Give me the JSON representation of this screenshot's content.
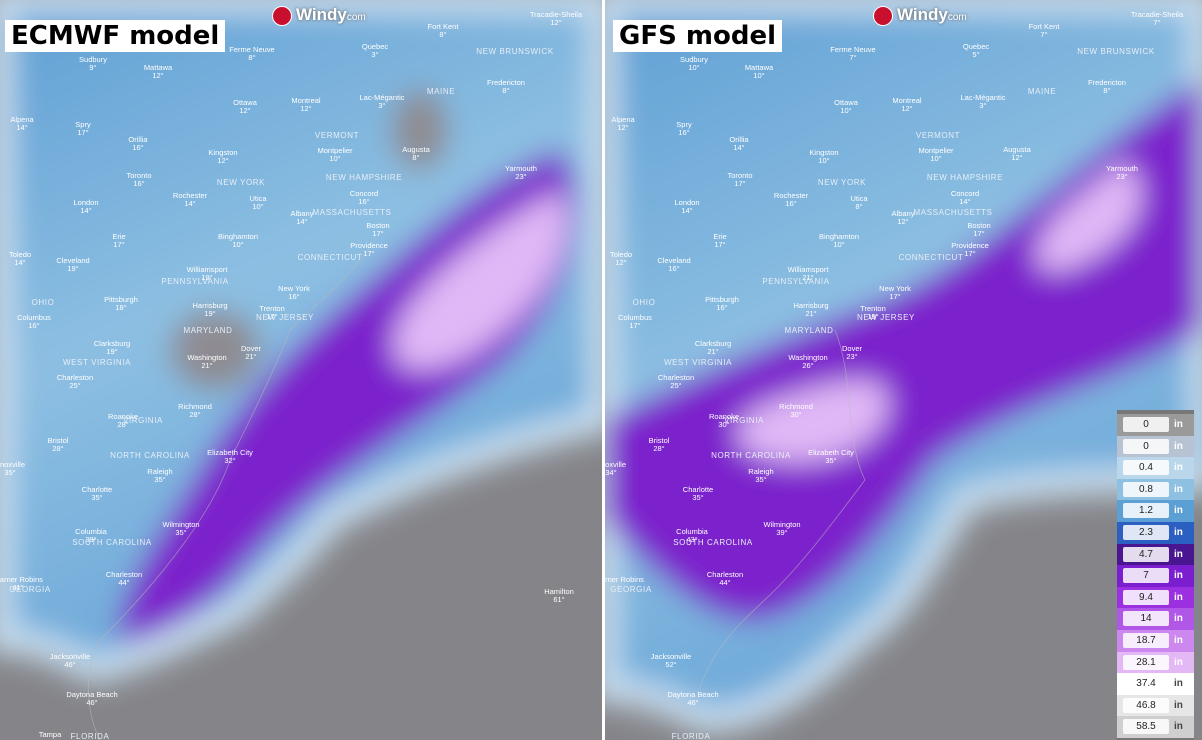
{
  "panels": [
    {
      "title": "ECMWF model",
      "logo": "Windy",
      "logo_suffix": "com",
      "cities": [
        {
          "name": "Tracadie-Sheila",
          "temp": "12°"
        },
        {
          "name": "Fort Kent",
          "temp": "8°"
        },
        {
          "name": "Quebec",
          "temp": "3°"
        },
        {
          "name": "Ferme Neuve",
          "temp": "8°"
        },
        {
          "name": "Sudbury",
          "temp": "9°"
        },
        {
          "name": "Mattawa",
          "temp": "12°"
        },
        {
          "name": "Fredericton",
          "temp": "8°"
        },
        {
          "name": "Ottawa",
          "temp": "12°"
        },
        {
          "name": "Montreal",
          "temp": "12°"
        },
        {
          "name": "Lac-Mégantic",
          "temp": "3°"
        },
        {
          "name": "Alpena",
          "temp": "14°"
        },
        {
          "name": "Spry",
          "temp": "17°"
        },
        {
          "name": "Orillia",
          "temp": "16°"
        },
        {
          "name": "Kingston",
          "temp": "12°"
        },
        {
          "name": "Montpelier",
          "temp": "10°"
        },
        {
          "name": "Augusta",
          "temp": "8°"
        },
        {
          "name": "Yarmouth",
          "temp": "23°"
        },
        {
          "name": "Toronto",
          "temp": "16°"
        },
        {
          "name": "Rochester",
          "temp": "14°"
        },
        {
          "name": "Utica",
          "temp": "10°"
        },
        {
          "name": "Concord",
          "temp": "16°"
        },
        {
          "name": "London",
          "temp": "14°"
        },
        {
          "name": "Albany",
          "temp": "14°"
        },
        {
          "name": "Boston",
          "temp": "17°"
        },
        {
          "name": "Erie",
          "temp": "17°"
        },
        {
          "name": "Binghamton",
          "temp": "10°"
        },
        {
          "name": "Providence",
          "temp": "17°"
        },
        {
          "name": "Toledo",
          "temp": "14°"
        },
        {
          "name": "Cleveland",
          "temp": "19°"
        },
        {
          "name": "Williamsport",
          "temp": "19°"
        },
        {
          "name": "New York",
          "temp": "16°"
        },
        {
          "name": "Pittsburgh",
          "temp": "18°"
        },
        {
          "name": "Harrisburg",
          "temp": "19°"
        },
        {
          "name": "Trenton",
          "temp": "17°"
        },
        {
          "name": "Columbus",
          "temp": "16°"
        },
        {
          "name": "Dover",
          "temp": "21°"
        },
        {
          "name": "Clarksburg",
          "temp": "19°"
        },
        {
          "name": "Washington",
          "temp": "21°"
        },
        {
          "name": "Charleston",
          "temp": "25°"
        },
        {
          "name": "Richmond",
          "temp": "28°"
        },
        {
          "name": "Roanoke",
          "temp": "28°"
        },
        {
          "name": "Bristol",
          "temp": "28°"
        },
        {
          "name": "Elizabeth City",
          "temp": "32°"
        },
        {
          "name": "Raleigh",
          "temp": "35°"
        },
        {
          "name": "Knoxville",
          "temp": "35°"
        },
        {
          "name": "Charlotte",
          "temp": "35°"
        },
        {
          "name": "Wilmington",
          "temp": "35°"
        },
        {
          "name": "Columbia",
          "temp": "39°"
        },
        {
          "name": "Charleston",
          "temp": "44°"
        },
        {
          "name": "Warner Robins",
          "temp": "41°"
        },
        {
          "name": "Jacksonville",
          "temp": "46°"
        },
        {
          "name": "Daytona Beach",
          "temp": "46°"
        },
        {
          "name": "Hamilton",
          "temp": "61°"
        },
        {
          "name": "Tampa",
          "temp": ""
        }
      ]
    },
    {
      "title": "GFS model",
      "logo": "Windy",
      "logo_suffix": "com",
      "cities": [
        {
          "name": "Tracadie-Sheila",
          "temp": "7°"
        },
        {
          "name": "Fort Kent",
          "temp": "7°"
        },
        {
          "name": "Quebec",
          "temp": "5°"
        },
        {
          "name": "Ferme Neuve",
          "temp": "7°"
        },
        {
          "name": "Sudbury",
          "temp": "10°"
        },
        {
          "name": "Mattawa",
          "temp": "10°"
        },
        {
          "name": "Fredericton",
          "temp": "8°"
        },
        {
          "name": "Ottawa",
          "temp": "10°"
        },
        {
          "name": "Montreal",
          "temp": "12°"
        },
        {
          "name": "Lac-Mégantic",
          "temp": "3°"
        },
        {
          "name": "Alpena",
          "temp": "12°"
        },
        {
          "name": "Spry",
          "temp": "16°"
        },
        {
          "name": "Orillia",
          "temp": "14°"
        },
        {
          "name": "Kingston",
          "temp": "10°"
        },
        {
          "name": "Montpelier",
          "temp": "10°"
        },
        {
          "name": "Augusta",
          "temp": "12°"
        },
        {
          "name": "Yarmouth",
          "temp": "23°"
        },
        {
          "name": "Toronto",
          "temp": "17°"
        },
        {
          "name": "Rochester",
          "temp": "16°"
        },
        {
          "name": "Utica",
          "temp": "8°"
        },
        {
          "name": "Concord",
          "temp": "14°"
        },
        {
          "name": "London",
          "temp": "14°"
        },
        {
          "name": "Albany",
          "temp": "12°"
        },
        {
          "name": "Boston",
          "temp": "17°"
        },
        {
          "name": "Erie",
          "temp": "17°"
        },
        {
          "name": "Binghamton",
          "temp": "10°"
        },
        {
          "name": "Providence",
          "temp": "17°"
        },
        {
          "name": "Toledo",
          "temp": "12°"
        },
        {
          "name": "Cleveland",
          "temp": "16°"
        },
        {
          "name": "Williamsport",
          "temp": "21°"
        },
        {
          "name": "New York",
          "temp": "17°"
        },
        {
          "name": "Pittsburgh",
          "temp": "16°"
        },
        {
          "name": "Harrisburg",
          "temp": "21°"
        },
        {
          "name": "Trenton",
          "temp": "19°"
        },
        {
          "name": "Columbus",
          "temp": "17°"
        },
        {
          "name": "Dover",
          "temp": "23°"
        },
        {
          "name": "Clarksburg",
          "temp": "21°"
        },
        {
          "name": "Washington",
          "temp": "26°"
        },
        {
          "name": "Charleston",
          "temp": "25°"
        },
        {
          "name": "Richmond",
          "temp": "30°"
        },
        {
          "name": "Roanoke",
          "temp": "30°"
        },
        {
          "name": "Bristol",
          "temp": "28°"
        },
        {
          "name": "Elizabeth City",
          "temp": "35°"
        },
        {
          "name": "Raleigh",
          "temp": "35°"
        },
        {
          "name": "Knoxville",
          "temp": "34°"
        },
        {
          "name": "Charlotte",
          "temp": "35°"
        },
        {
          "name": "Wilmington",
          "temp": "39°"
        },
        {
          "name": "Columbia",
          "temp": "43°"
        },
        {
          "name": "Charleston",
          "temp": "44°"
        },
        {
          "name": "Warner Robins",
          "temp": ""
        },
        {
          "name": "Jacksonville",
          "temp": "52°"
        },
        {
          "name": "Daytona Beach",
          "temp": "46°"
        }
      ]
    }
  ],
  "regions": [
    "NEW BRUNSWICK",
    "MAINE",
    "VERMONT",
    "NEW HAMPSHIRE",
    "MASSACHUSETTS",
    "CONNECTICUT",
    "NEW YORK",
    "OHIO",
    "PENNSYLVANIA",
    "MARYLAND",
    "NEW JERSEY",
    "WEST VIRGINIA",
    "VIRGINIA",
    "NORTH CAROLINA",
    "SOUTH CAROLINA",
    "GEORGIA",
    "FLORIDA"
  ],
  "legend": {
    "unit": "in",
    "entries": [
      {
        "value": 0,
        "color": "#9a9a9a"
      },
      {
        "value": 0,
        "color": "#b7c3d2"
      },
      {
        "value": 0.4,
        "color": "#b9d6ea"
      },
      {
        "value": 0.8,
        "color": "#8ec0e2"
      },
      {
        "value": 1.2,
        "color": "#5b9fd4"
      },
      {
        "value": 2.3,
        "color": "#2c5fc2"
      },
      {
        "value": 4.7,
        "color": "#4a168f"
      },
      {
        "value": 7,
        "color": "#7a1ed0"
      },
      {
        "value": 9.4,
        "color": "#9b30e0"
      },
      {
        "value": 14,
        "color": "#b057e8"
      },
      {
        "value": 18.7,
        "color": "#cd88ef"
      },
      {
        "value": 28.1,
        "color": "#e3b8f4"
      },
      {
        "value": 37.4,
        "color": "#ffffff"
      },
      {
        "value": 46.8,
        "color": "#e6e6e6"
      },
      {
        "value": 58.5,
        "color": "#cfcfcf"
      }
    ]
  }
}
